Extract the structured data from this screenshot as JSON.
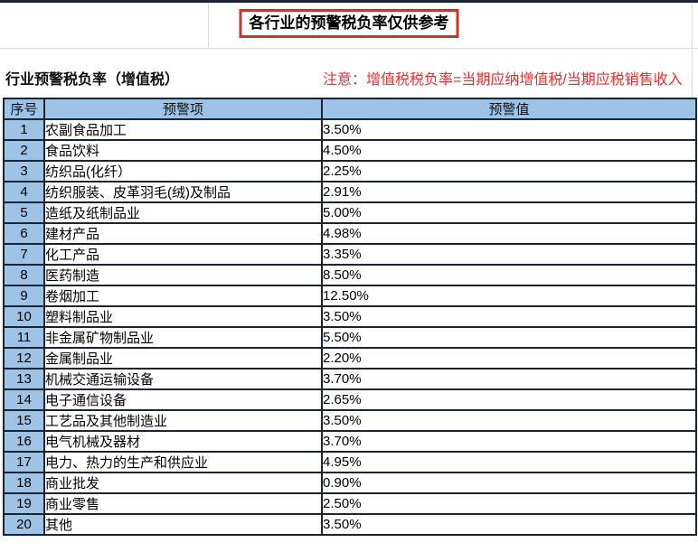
{
  "title": "各行业的预警税负率仅供参考",
  "subtitle": "行业预警税负率（增值税）",
  "note": "注意：增值税税负率=当期应纳增值税/当期应税销售收入",
  "table": {
    "headers": {
      "no": "序号",
      "item": "预警项",
      "value": "预警值"
    },
    "rows": [
      {
        "no": "1",
        "item": "农副食品加工",
        "value": "3.50%"
      },
      {
        "no": "2",
        "item": "食品饮料",
        "value": "4.50%"
      },
      {
        "no": "3",
        "item": "纺织品(化纤）",
        "value": "2.25%"
      },
      {
        "no": "4",
        "item": "纺织服装、皮革羽毛(绒)及制品",
        "value": "2.91%"
      },
      {
        "no": "5",
        "item": "造纸及纸制品业",
        "value": "5.00%"
      },
      {
        "no": "6",
        "item": "建材产品",
        "value": "4.98%"
      },
      {
        "no": "7",
        "item": "化工产品",
        "value": "3.35%"
      },
      {
        "no": "8",
        "item": "医药制造",
        "value": "8.50%"
      },
      {
        "no": "9",
        "item": "卷烟加工",
        "value": "12.50%"
      },
      {
        "no": "10",
        "item": "塑料制品业",
        "value": "3.50%"
      },
      {
        "no": "11",
        "item": "非金属矿物制品业",
        "value": "5.50%"
      },
      {
        "no": "12",
        "item": "金属制品业",
        "value": "2.20%"
      },
      {
        "no": "13",
        "item": "机械交通运输设备",
        "value": "3.70%"
      },
      {
        "no": "14",
        "item": "电子通信设备",
        "value": "2.65%"
      },
      {
        "no": "15",
        "item": "工艺品及其他制造业",
        "value": "3.50%"
      },
      {
        "no": "16",
        "item": "电气机械及器材",
        "value": "3.70%"
      },
      {
        "no": "17",
        "item": "电力、热力的生产和供应业",
        "value": "4.95%"
      },
      {
        "no": "18",
        "item": "商业批发",
        "value": "0.90%"
      },
      {
        "no": "19",
        "item": "商业零售",
        "value": "2.50%"
      },
      {
        "no": "20",
        "item": "其他",
        "value": "3.50%"
      }
    ]
  },
  "colors": {
    "header_fill": "#9DC3E6",
    "border_dark": "#1B2433",
    "note_red": "#F62B2B",
    "title_box_red": "#C0392B",
    "gridline_gray": "#D9D9D9"
  }
}
